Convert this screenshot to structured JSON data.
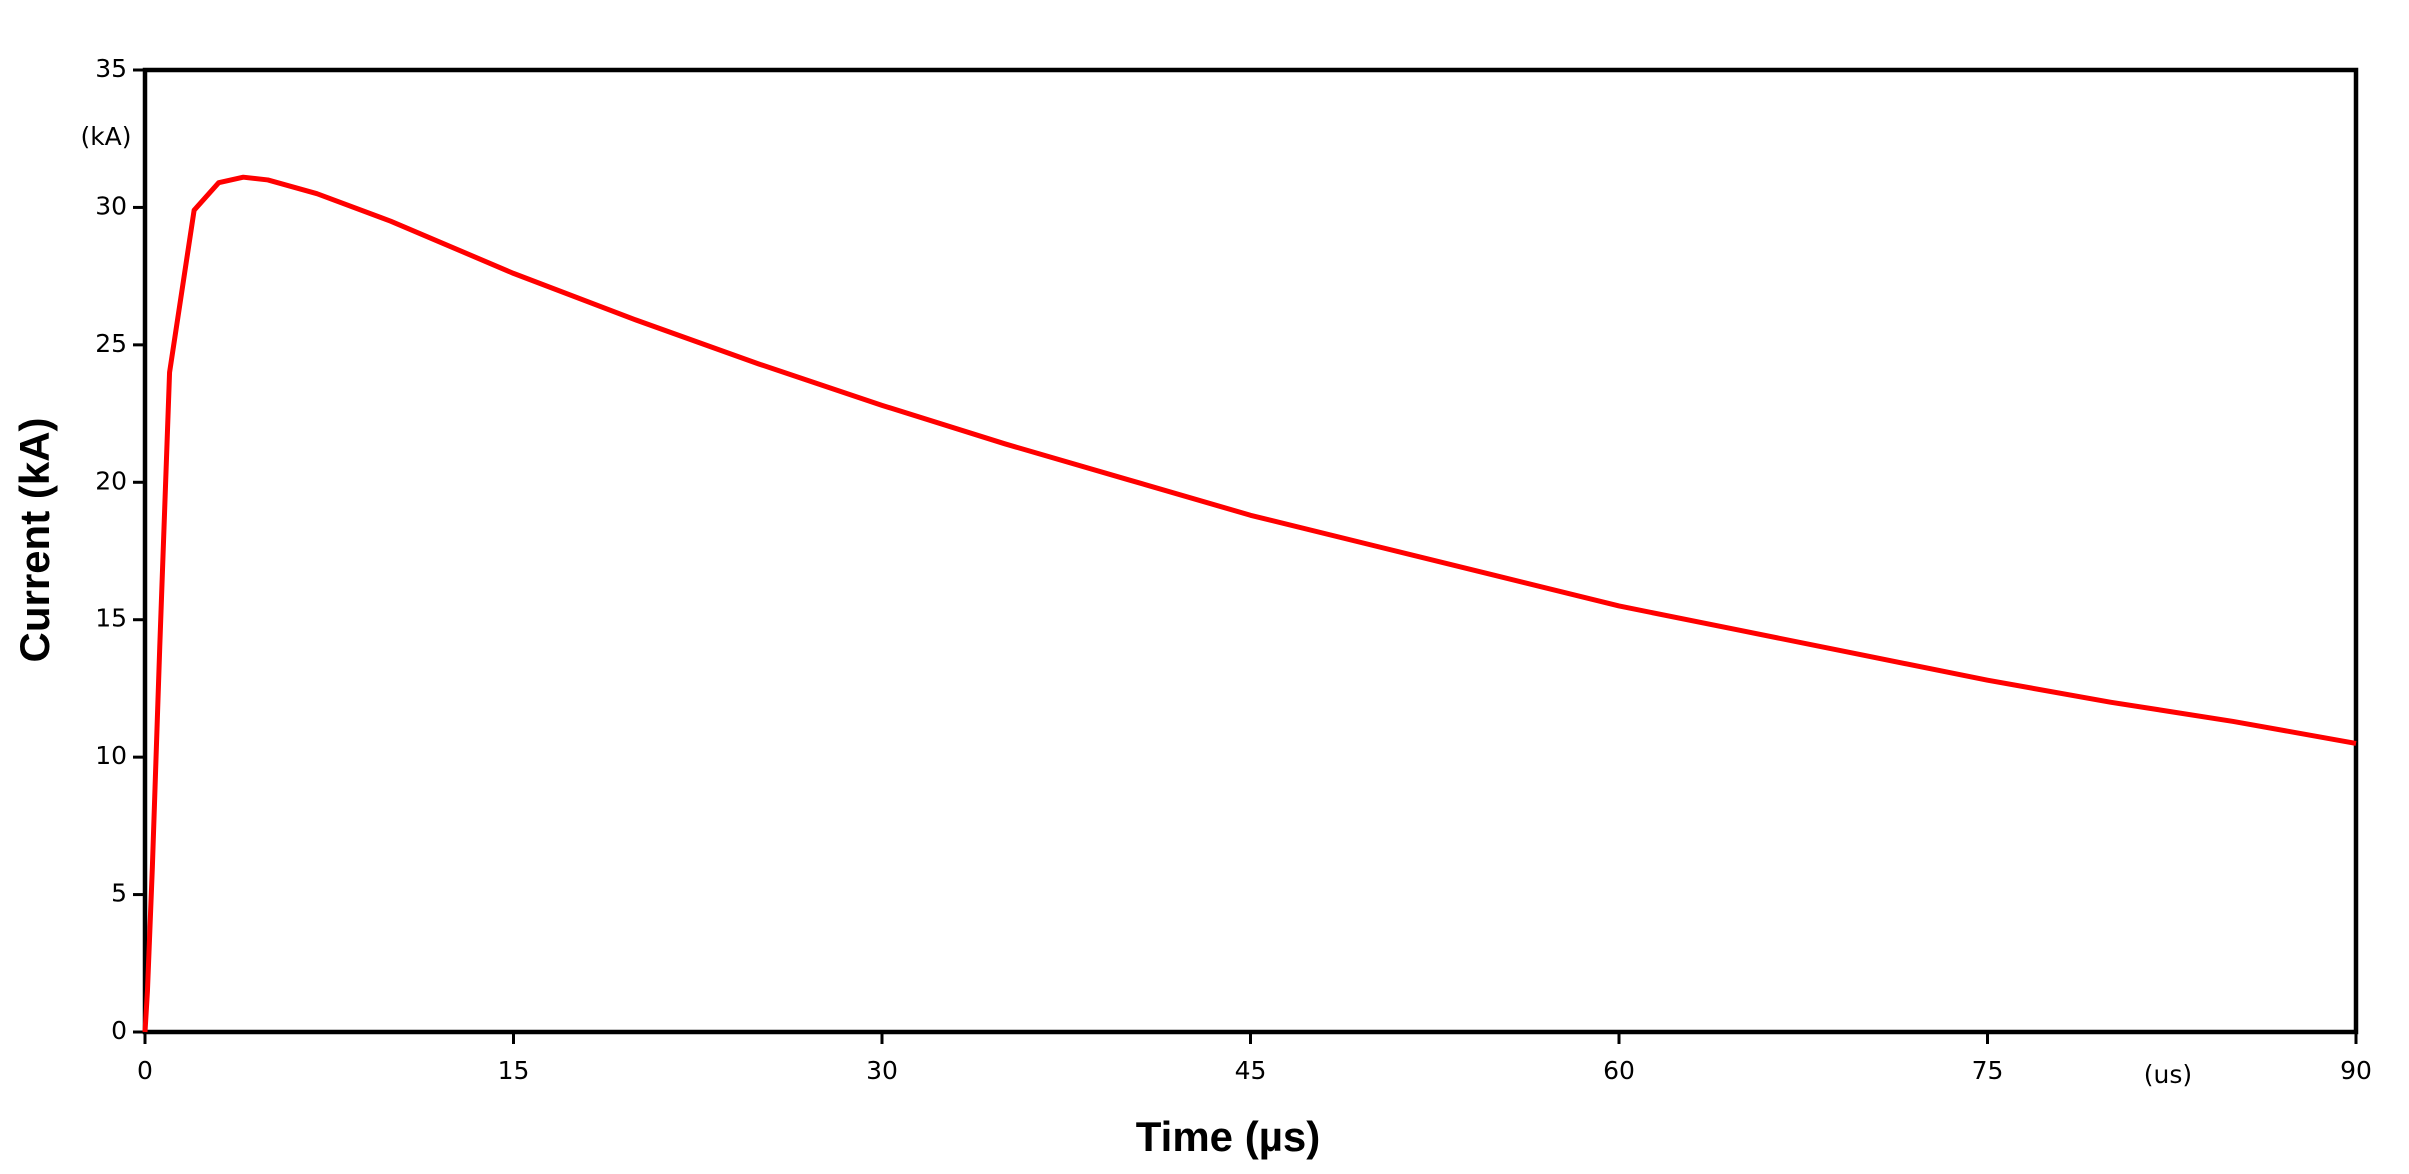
{
  "chart_data": {
    "type": "line",
    "x_label": "Time (µs)",
    "y_label": "Current (kA)",
    "x_unit_label": "(us)",
    "y_unit_label": "(kA)",
    "x": [
      0,
      0.1,
      0.3,
      0.6,
      1,
      2,
      3,
      4,
      5,
      7,
      10,
      15,
      20,
      25,
      30,
      35,
      40,
      45,
      50,
      55,
      60,
      65,
      70,
      75,
      80,
      85,
      90
    ],
    "values": [
      0,
      1.5,
      6,
      14,
      24,
      29.9,
      30.9,
      31.1,
      31.0,
      30.5,
      29.5,
      27.6,
      25.9,
      24.3,
      22.8,
      21.4,
      20.1,
      18.8,
      17.7,
      16.6,
      15.5,
      14.6,
      13.7,
      12.8,
      12.0,
      11.3,
      10.5
    ],
    "color": "#ff0000",
    "xlim": [
      0,
      90
    ],
    "xticks": [
      0,
      15,
      30,
      45,
      60,
      75,
      90
    ],
    "ylim": [
      0,
      35
    ],
    "yticks": [
      0,
      5,
      10,
      15,
      20,
      25,
      30,
      35
    ],
    "grid": false
  }
}
